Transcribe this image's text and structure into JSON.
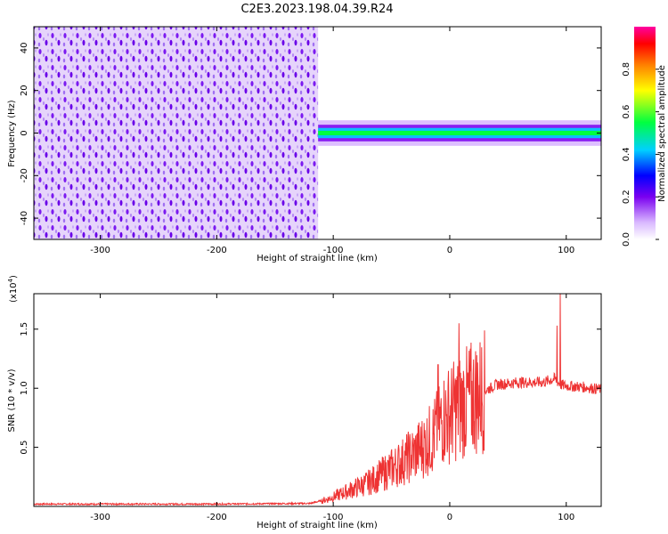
{
  "chart_data": [
    {
      "type": "heatmap",
      "title": "C2E3.2023.198.04.39.R24",
      "xlabel": "Height of straight line (km)",
      "ylabel": "Frequency (Hz)",
      "xlim": [
        -357,
        130
      ],
      "ylim": [
        -50,
        50
      ],
      "x_ticks": [
        -300,
        -200,
        -100,
        0,
        100
      ],
      "y_ticks": [
        -40,
        -20,
        0,
        20,
        40
      ],
      "colorbar": {
        "label": "Normalized spectral amplitude",
        "range": [
          0,
          1
        ],
        "ticks": [
          "0.0",
          "0.2",
          "0.4",
          "0.6",
          "0.8"
        ],
        "colors": [
          "#ffffff",
          "#d9b8ff",
          "#7a00f0",
          "#0000ff",
          "#00d0ff",
          "#00ff40",
          "#ffff00",
          "#ff8000",
          "#ff0000",
          "#ff00a0"
        ]
      },
      "regions": [
        {
          "x_range": [
            -357,
            -113
          ],
          "f_range": [
            -50,
            50
          ],
          "amplitude": "noise 0.05-0.25"
        },
        {
          "x_range": [
            -113,
            130
          ],
          "f_center": 0,
          "f_halfwidth_hz": 3,
          "amplitude": "0.3-1.0 along trace"
        }
      ]
    },
    {
      "type": "line",
      "title": "",
      "xlabel": "Height of straight line (km)",
      "ylabel": "SNR (10 * v/v)",
      "y_multiplier": "(x10^4)",
      "xlim": [
        -357,
        130
      ],
      "ylim": [
        0,
        18000
      ],
      "x_ticks": [
        -300,
        -200,
        -100,
        0,
        100
      ],
      "y_ticks": [
        {
          "value": 5000,
          "label": "0.5"
        },
        {
          "value": 10000,
          "label": "1.0"
        },
        {
          "value": 15000,
          "label": "1.5"
        }
      ],
      "series_color": "#ee3333",
      "x": [
        -357,
        -300,
        -200,
        -120,
        -105,
        -90,
        -70,
        -50,
        -30,
        -15,
        -5,
        5,
        20,
        40,
        60,
        80,
        90,
        95,
        100,
        115,
        130
      ],
      "y": [
        200,
        200,
        200,
        250,
        600,
        1200,
        2000,
        3200,
        4500,
        5800,
        7500,
        8200,
        9200,
        10300,
        10500,
        10500,
        10800,
        10300,
        10200,
        10100,
        9900
      ],
      "spikes": [
        {
          "x": -10,
          "y": 12000
        },
        {
          "x": 8,
          "y": 15500
        },
        {
          "x": 92,
          "y": 15300
        },
        {
          "x": 95,
          "y": 18000
        }
      ]
    }
  ],
  "axis_unit_exponent": "4"
}
